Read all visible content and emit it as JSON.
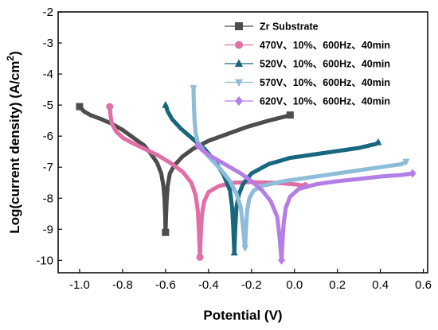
{
  "chart_data": {
    "type": "scatter",
    "xlabel": "Potential (V)",
    "ylabel": "Log(current density) (A/cm",
    "ylabel_sup": "2",
    "ylabel_end": ")",
    "xlim": [
      -1.1,
      0.62
    ],
    "ylim": [
      -10.4,
      -2
    ],
    "xticks": [
      "-1.0",
      "-0.8",
      "-0.6",
      "-0.4",
      "-0.2",
      "0.0",
      "0.2",
      "0.4",
      "0.6"
    ],
    "yticks": [
      "-2",
      "-3",
      "-4",
      "-5",
      "-6",
      "-7",
      "-8",
      "-9",
      "-10"
    ],
    "legend_position": "top-right",
    "grid": false,
    "series": [
      {
        "name": "Zr Substrate",
        "color": "#4d4d4d",
        "marker": "square",
        "cathodic": [
          [
            -1.0,
            -5.05
          ],
          [
            -0.98,
            -5.2
          ],
          [
            -0.95,
            -5.32
          ],
          [
            -0.9,
            -5.45
          ],
          [
            -0.85,
            -5.6
          ],
          [
            -0.8,
            -5.8
          ],
          [
            -0.75,
            -6.05
          ],
          [
            -0.7,
            -6.3
          ],
          [
            -0.67,
            -6.55
          ],
          [
            -0.64,
            -6.85
          ],
          [
            -0.62,
            -7.2
          ],
          [
            -0.61,
            -7.6
          ],
          [
            -0.605,
            -8.0
          ],
          [
            -0.602,
            -8.5
          ],
          [
            -0.6,
            -9.1
          ]
        ],
        "anodic": [
          [
            -0.6,
            -9.1
          ],
          [
            -0.598,
            -8.6
          ],
          [
            -0.595,
            -8.1
          ],
          [
            -0.59,
            -7.6
          ],
          [
            -0.58,
            -7.2
          ],
          [
            -0.56,
            -6.95
          ],
          [
            -0.52,
            -6.65
          ],
          [
            -0.47,
            -6.4
          ],
          [
            -0.4,
            -6.15
          ],
          [
            -0.32,
            -5.95
          ],
          [
            -0.22,
            -5.7
          ],
          [
            -0.12,
            -5.5
          ],
          [
            -0.05,
            -5.38
          ],
          [
            -0.02,
            -5.32
          ]
        ]
      },
      {
        "name": "470V、10%、600Hz、40min",
        "color": "#e16fa6",
        "marker": "circle",
        "cathodic": [
          [
            -0.86,
            -5.05
          ],
          [
            -0.855,
            -5.4
          ],
          [
            -0.85,
            -5.6
          ],
          [
            -0.83,
            -5.85
          ],
          [
            -0.8,
            -6.05
          ],
          [
            -0.76,
            -6.2
          ],
          [
            -0.7,
            -6.4
          ],
          [
            -0.64,
            -6.6
          ],
          [
            -0.58,
            -6.85
          ],
          [
            -0.52,
            -7.15
          ],
          [
            -0.48,
            -7.5
          ],
          [
            -0.46,
            -7.9
          ],
          [
            -0.45,
            -8.4
          ],
          [
            -0.445,
            -9.0
          ],
          [
            -0.44,
            -9.9
          ]
        ],
        "anodic": [
          [
            -0.44,
            -9.9
          ],
          [
            -0.435,
            -9.0
          ],
          [
            -0.43,
            -8.5
          ],
          [
            -0.42,
            -8.1
          ],
          [
            -0.4,
            -7.8
          ],
          [
            -0.35,
            -7.6
          ],
          [
            -0.28,
            -7.5
          ],
          [
            -0.2,
            -7.48
          ],
          [
            -0.1,
            -7.5
          ],
          [
            0.0,
            -7.55
          ],
          [
            0.05,
            -7.6
          ]
        ]
      },
      {
        "name": "520V、10%、600Hz、40min",
        "color": "#17677f",
        "marker": "triangle-up",
        "cathodic": [
          [
            -0.6,
            -5.0
          ],
          [
            -0.59,
            -5.2
          ],
          [
            -0.57,
            -5.45
          ],
          [
            -0.53,
            -5.75
          ],
          [
            -0.48,
            -6.05
          ],
          [
            -0.42,
            -6.4
          ],
          [
            -0.37,
            -6.8
          ],
          [
            -0.33,
            -7.25
          ],
          [
            -0.3,
            -7.75
          ],
          [
            -0.29,
            -8.3
          ],
          [
            -0.285,
            -8.9
          ],
          [
            -0.28,
            -9.75
          ]
        ],
        "anodic": [
          [
            -0.28,
            -9.75
          ],
          [
            -0.275,
            -8.9
          ],
          [
            -0.27,
            -8.3
          ],
          [
            -0.26,
            -7.9
          ],
          [
            -0.24,
            -7.55
          ],
          [
            -0.2,
            -7.2
          ],
          [
            -0.12,
            -6.9
          ],
          [
            -0.02,
            -6.7
          ],
          [
            0.1,
            -6.58
          ],
          [
            0.2,
            -6.48
          ],
          [
            0.3,
            -6.38
          ],
          [
            0.38,
            -6.25
          ],
          [
            0.39,
            -6.2
          ]
        ]
      },
      {
        "name": "570V、10%、600Hz、40min",
        "color": "#8fbcd9",
        "marker": "triangle-down",
        "cathodic": [
          [
            -0.47,
            -4.45
          ],
          [
            -0.468,
            -5.0
          ],
          [
            -0.465,
            -5.5
          ],
          [
            -0.46,
            -5.9
          ],
          [
            -0.45,
            -6.2
          ],
          [
            -0.42,
            -6.5
          ],
          [
            -0.38,
            -6.8
          ],
          [
            -0.34,
            -7.1
          ],
          [
            -0.3,
            -7.45
          ],
          [
            -0.27,
            -7.85
          ],
          [
            -0.25,
            -8.3
          ],
          [
            -0.24,
            -8.9
          ],
          [
            -0.23,
            -9.6
          ]
        ],
        "anodic": [
          [
            -0.23,
            -9.6
          ],
          [
            -0.225,
            -8.9
          ],
          [
            -0.22,
            -8.4
          ],
          [
            -0.21,
            -8.0
          ],
          [
            -0.19,
            -7.75
          ],
          [
            -0.15,
            -7.6
          ],
          [
            -0.05,
            -7.45
          ],
          [
            0.05,
            -7.35
          ],
          [
            0.15,
            -7.25
          ],
          [
            0.25,
            -7.15
          ],
          [
            0.35,
            -7.05
          ],
          [
            0.45,
            -6.95
          ],
          [
            0.5,
            -6.9
          ],
          [
            0.52,
            -6.82
          ]
        ]
      },
      {
        "name": "620V、10%、600Hz、40min",
        "color": "#b57ee6",
        "marker": "diamond",
        "cathodic": [
          [
            -0.45,
            -6.3
          ],
          [
            -0.43,
            -6.45
          ],
          [
            -0.4,
            -6.6
          ],
          [
            -0.35,
            -6.8
          ],
          [
            -0.3,
            -7.0
          ],
          [
            -0.25,
            -7.2
          ],
          [
            -0.2,
            -7.45
          ],
          [
            -0.15,
            -7.75
          ],
          [
            -0.11,
            -8.1
          ],
          [
            -0.08,
            -8.6
          ],
          [
            -0.07,
            -9.2
          ],
          [
            -0.06,
            -10.0
          ]
        ],
        "anodic": [
          [
            -0.06,
            -10.0
          ],
          [
            -0.055,
            -9.3
          ],
          [
            -0.05,
            -8.8
          ],
          [
            -0.04,
            -8.3
          ],
          [
            -0.02,
            -7.95
          ],
          [
            0.02,
            -7.7
          ],
          [
            0.1,
            -7.55
          ],
          [
            0.2,
            -7.45
          ],
          [
            0.3,
            -7.38
          ],
          [
            0.4,
            -7.3
          ],
          [
            0.5,
            -7.25
          ],
          [
            0.55,
            -7.2
          ]
        ]
      }
    ]
  }
}
